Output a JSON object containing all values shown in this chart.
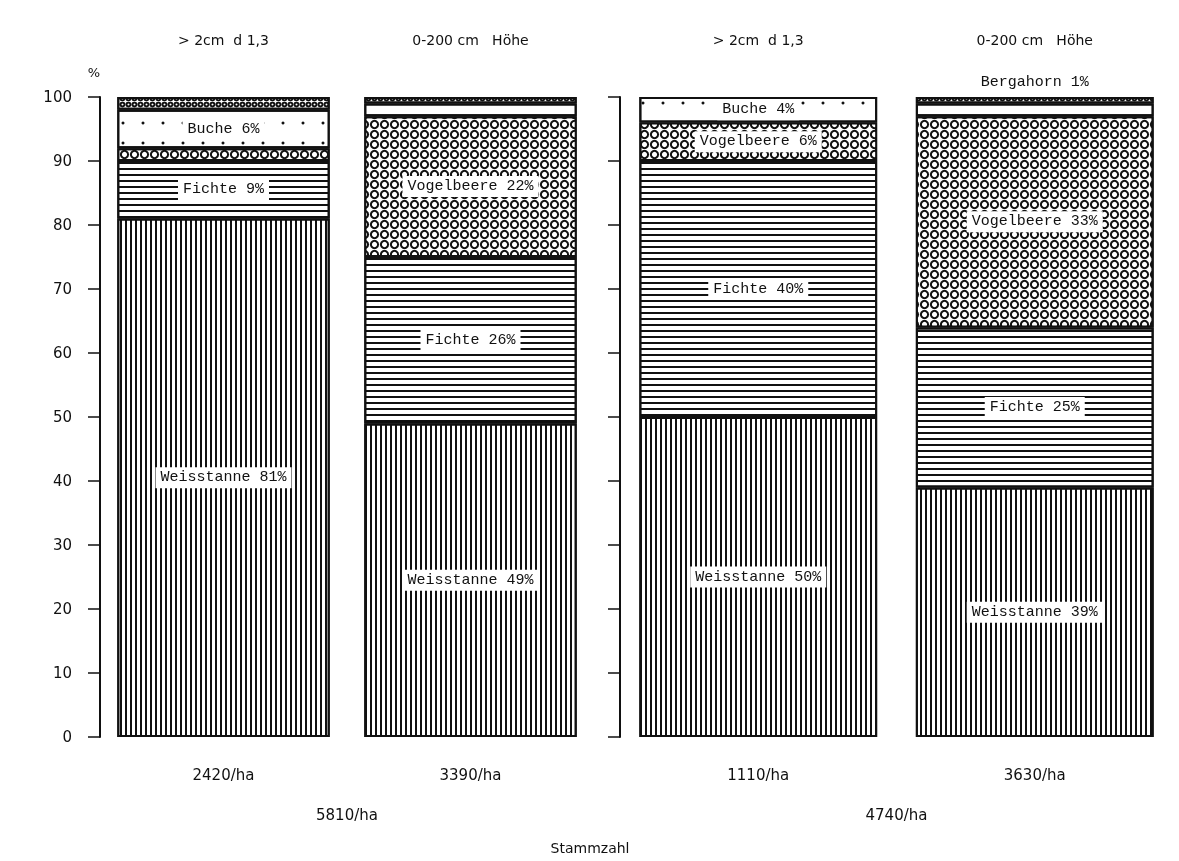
{
  "chart_data": [
    {
      "type": "bar",
      "stacked": true,
      "ylabel": "%",
      "xlabel": "5810/ha",
      "categories": [
        "2420/ha",
        "3390/ha"
      ],
      "series": [
        {
          "color": "#ffffff",
          "values": [
            81,
            49
          ],
          "value_labels": [
            "Weisstanne 81%",
            "Weisstanne 49%"
          ]
        },
        {
          "color": "#ffffff",
          "values": [
            9,
            26
          ],
          "value_labels": [
            "Fichte 9%",
            "Fichte 26%"
          ]
        },
        {
          "color": "#ffffff",
          "values": [
            2,
            22
          ],
          "value_labels": [
            null,
            "Vogelbeere 22%"
          ]
        },
        {
          "color": "#ffffff",
          "values": [
            6,
            2
          ],
          "value_labels": [
            "Buche 6%",
            null
          ]
        },
        {
          "color": "#ffffff",
          "values": [
            2,
            1
          ],
          "value_labels": [
            null,
            null
          ]
        }
      ],
      "ylim": [
        0,
        100
      ],
      "yticks": [
        0,
        10,
        20,
        30,
        40,
        50,
        60,
        70,
        80,
        90,
        100
      ],
      "annotations": [
        "> 2cm  d 1,3",
        "0-200 cm   Höhe"
      ]
    },
    {
      "type": "bar",
      "stacked": true,
      "xlabel": "4740/ha",
      "tick_labels": "x",
      "categories": [
        "1110/ha",
        "3630/ha"
      ],
      "series": [
        {
          "color": "#ffffff",
          "values": [
            50,
            39
          ],
          "value_labels": [
            "Weisstanne 50%",
            "Weisstanne 39%"
          ]
        },
        {
          "color": "#ffffff",
          "values": [
            40,
            25
          ],
          "value_labels": [
            "Fichte 40%",
            "Fichte 25%"
          ]
        },
        {
          "color": "#ffffff",
          "values": [
            6,
            33
          ],
          "value_labels": [
            "Vogelbeere 6%",
            "Vogelbeere 33%"
          ]
        },
        {
          "color": "#ffffff",
          "values": [
            4,
            2
          ],
          "value_labels": [
            "Buche 4%",
            null
          ]
        },
        {
          "color": "#ffffff",
          "values": [
            null,
            1
          ],
          "value_labels": [
            null,
            "Bergahorn 1%"
          ]
        }
      ],
      "ylim": [
        0,
        100
      ],
      "yticks": [
        0,
        10,
        20,
        30,
        40,
        50,
        60,
        70,
        80,
        90,
        100
      ],
      "annotations": [
        "> 2cm  d 1,3",
        "0-200 cm   Höhe",
        "Stammzahl"
      ]
    }
  ]
}
